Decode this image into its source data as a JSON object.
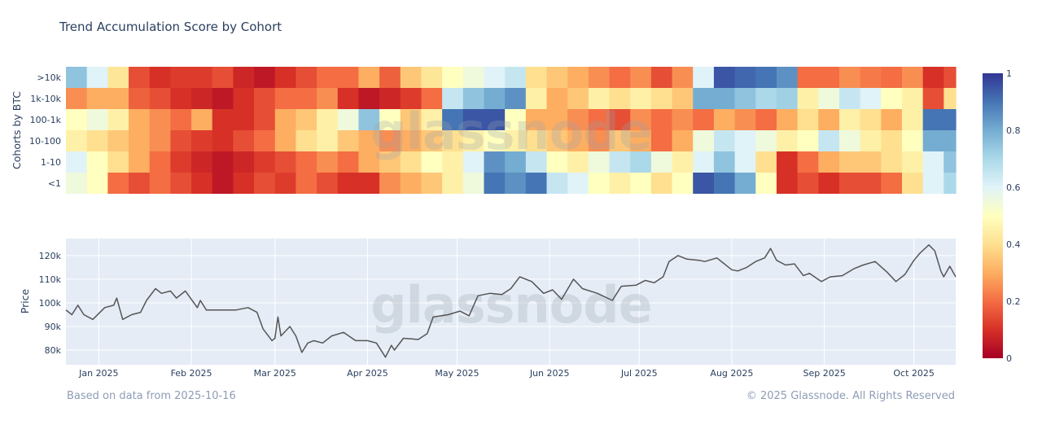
{
  "title": "Trend Accumulation Score by Cohort",
  "footer_left": "Based on data from 2025-10-16",
  "footer_right": "© 2025 Glassnode. All Rights Reserved",
  "watermark": "glassnode",
  "chart_data": [
    {
      "type": "heatmap",
      "ylabel": "Cohorts by BTC",
      "x_start": "2024-12-21",
      "x_end": "2025-10-15",
      "bucket_days": 7,
      "cohorts": [
        ">10k",
        "1k-10k",
        "100-1k",
        "10-100",
        "1-10",
        "<1"
      ],
      "values": [
        [
          0.75,
          0.6,
          0.42,
          0.15,
          0.1,
          0.12,
          0.12,
          0.15,
          0.08,
          0.05,
          0.1,
          0.15,
          0.2,
          0.2,
          0.3,
          0.18,
          0.35,
          0.42,
          0.5,
          0.55,
          0.6,
          0.65,
          0.4,
          0.35,
          0.3,
          0.25,
          0.2,
          0.25,
          0.15,
          0.25,
          0.6,
          0.95,
          0.92,
          0.9,
          0.85,
          0.2,
          0.2,
          0.25,
          0.22,
          0.2,
          0.25,
          0.1,
          0.15
        ],
        [
          0.25,
          0.3,
          0.3,
          0.18,
          0.15,
          0.1,
          0.08,
          0.05,
          0.1,
          0.15,
          0.2,
          0.2,
          0.25,
          0.1,
          0.05,
          0.08,
          0.12,
          0.2,
          0.65,
          0.75,
          0.8,
          0.85,
          0.45,
          0.3,
          0.35,
          0.45,
          0.4,
          0.45,
          0.4,
          0.35,
          0.8,
          0.8,
          0.75,
          0.7,
          0.72,
          0.45,
          0.55,
          0.65,
          0.6,
          0.5,
          0.45,
          0.15,
          0.4
        ],
        [
          0.5,
          0.55,
          0.45,
          0.3,
          0.25,
          0.2,
          0.3,
          0.1,
          0.1,
          0.15,
          0.3,
          0.35,
          0.45,
          0.55,
          0.75,
          0.5,
          0.35,
          0.45,
          0.9,
          0.95,
          0.95,
          0.5,
          0.3,
          0.3,
          0.25,
          0.2,
          0.15,
          0.25,
          0.2,
          0.25,
          0.2,
          0.3,
          0.25,
          0.2,
          0.3,
          0.4,
          0.3,
          0.45,
          0.4,
          0.3,
          0.45,
          0.9,
          0.9
        ],
        [
          0.45,
          0.4,
          0.35,
          0.3,
          0.25,
          0.15,
          0.12,
          0.1,
          0.15,
          0.2,
          0.3,
          0.4,
          0.45,
          0.35,
          0.3,
          0.25,
          0.3,
          0.35,
          0.4,
          0.45,
          0.5,
          0.45,
          0.4,
          0.35,
          0.3,
          0.25,
          0.35,
          0.3,
          0.2,
          0.3,
          0.55,
          0.65,
          0.6,
          0.55,
          0.45,
          0.5,
          0.65,
          0.55,
          0.45,
          0.4,
          0.5,
          0.8,
          0.8
        ],
        [
          0.6,
          0.5,
          0.4,
          0.3,
          0.2,
          0.12,
          0.08,
          0.05,
          0.08,
          0.12,
          0.15,
          0.2,
          0.25,
          0.2,
          0.3,
          0.35,
          0.4,
          0.5,
          0.45,
          0.6,
          0.85,
          0.8,
          0.65,
          0.5,
          0.45,
          0.55,
          0.65,
          0.7,
          0.55,
          0.45,
          0.6,
          0.75,
          0.6,
          0.4,
          0.1,
          0.2,
          0.3,
          0.35,
          0.35,
          0.4,
          0.45,
          0.6,
          0.75
        ],
        [
          0.55,
          0.5,
          0.2,
          0.15,
          0.2,
          0.15,
          0.1,
          0.05,
          0.1,
          0.15,
          0.12,
          0.2,
          0.15,
          0.1,
          0.1,
          0.25,
          0.3,
          0.35,
          0.45,
          0.55,
          0.9,
          0.85,
          0.9,
          0.65,
          0.6,
          0.5,
          0.45,
          0.5,
          0.4,
          0.5,
          0.95,
          0.9,
          0.8,
          0.5,
          0.1,
          0.15,
          0.1,
          0.15,
          0.15,
          0.2,
          0.4,
          0.6,
          0.7
        ]
      ],
      "colorscale": "RdYlBu",
      "colorbar": {
        "range": [
          0,
          1
        ],
        "ticks": [
          "0",
          "0.2",
          "0.4",
          "0.6",
          "0.8",
          "1"
        ]
      }
    },
    {
      "type": "line",
      "ylabel": "Price",
      "xlim": [
        "2024-12-21",
        "2025-10-15"
      ],
      "ylim": [
        73800,
        127200
      ],
      "grid": true,
      "color": "#555555",
      "x_ticks": [
        "Jan 2025",
        "Feb 2025",
        "Mar 2025",
        "Apr 2025",
        "May 2025",
        "Jun 2025",
        "Jul 2025",
        "Aug 2025",
        "Sep 2025",
        "Oct 2025"
      ],
      "y_ticks": [
        "80k",
        "90k",
        "100k",
        "110k",
        "120k"
      ],
      "points": [
        [
          "2024-12-21",
          97000
        ],
        [
          "2024-12-23",
          95000
        ],
        [
          "2024-12-25",
          99000
        ],
        [
          "2024-12-27",
          95000
        ],
        [
          "2024-12-30",
          93000
        ],
        [
          "2025-01-03",
          98000
        ],
        [
          "2025-01-06",
          99000
        ],
        [
          "2025-01-07",
          102000
        ],
        [
          "2025-01-09",
          93000
        ],
        [
          "2025-01-12",
          95000
        ],
        [
          "2025-01-15",
          96000
        ],
        [
          "2025-01-17",
          101000
        ],
        [
          "2025-01-20",
          106000
        ],
        [
          "2025-01-22",
          104000
        ],
        [
          "2025-01-25",
          105000
        ],
        [
          "2025-01-27",
          102000
        ],
        [
          "2025-01-30",
          105000
        ],
        [
          "2025-02-03",
          98000
        ],
        [
          "2025-02-04",
          101000
        ],
        [
          "2025-02-06",
          97000
        ],
        [
          "2025-02-12",
          97000
        ],
        [
          "2025-02-16",
          97000
        ],
        [
          "2025-02-20",
          98000
        ],
        [
          "2025-02-23",
          96000
        ],
        [
          "2025-02-25",
          89000
        ],
        [
          "2025-02-28",
          84000
        ],
        [
          "2025-03-01",
          85000
        ],
        [
          "2025-03-02",
          94000
        ],
        [
          "2025-03-03",
          86000
        ],
        [
          "2025-03-06",
          90000
        ],
        [
          "2025-03-08",
          86000
        ],
        [
          "2025-03-10",
          79000
        ],
        [
          "2025-03-12",
          83000
        ],
        [
          "2025-03-14",
          84000
        ],
        [
          "2025-03-17",
          83000
        ],
        [
          "2025-03-20",
          86000
        ],
        [
          "2025-03-24",
          87500
        ],
        [
          "2025-03-28",
          84000
        ],
        [
          "2025-04-01",
          84000
        ],
        [
          "2025-04-04",
          83000
        ],
        [
          "2025-04-07",
          77000
        ],
        [
          "2025-04-09",
          82000
        ],
        [
          "2025-04-10",
          80000
        ],
        [
          "2025-04-13",
          85000
        ],
        [
          "2025-04-18",
          84500
        ],
        [
          "2025-04-21",
          87000
        ],
        [
          "2025-04-23",
          94000
        ],
        [
          "2025-04-28",
          95000
        ],
        [
          "2025-05-02",
          96500
        ],
        [
          "2025-05-05",
          94500
        ],
        [
          "2025-05-08",
          103000
        ],
        [
          "2025-05-12",
          104000
        ],
        [
          "2025-05-16",
          103500
        ],
        [
          "2025-05-19",
          106000
        ],
        [
          "2025-05-22",
          111000
        ],
        [
          "2025-05-26",
          109000
        ],
        [
          "2025-05-30",
          104000
        ],
        [
          "2025-06-02",
          105500
        ],
        [
          "2025-06-05",
          101500
        ],
        [
          "2025-06-09",
          110000
        ],
        [
          "2025-06-12",
          106000
        ],
        [
          "2025-06-17",
          104000
        ],
        [
          "2025-06-22",
          101000
        ],
        [
          "2025-06-25",
          107000
        ],
        [
          "2025-06-30",
          107500
        ],
        [
          "2025-07-03",
          109500
        ],
        [
          "2025-07-06",
          108500
        ],
        [
          "2025-07-09",
          111000
        ],
        [
          "2025-07-11",
          117500
        ],
        [
          "2025-07-14",
          120000
        ],
        [
          "2025-07-17",
          118500
        ],
        [
          "2025-07-21",
          118000
        ],
        [
          "2025-07-23",
          117500
        ],
        [
          "2025-07-27",
          119000
        ],
        [
          "2025-08-01",
          114000
        ],
        [
          "2025-08-03",
          113500
        ],
        [
          "2025-08-06",
          115000
        ],
        [
          "2025-08-09",
          117500
        ],
        [
          "2025-08-12",
          119000
        ],
        [
          "2025-08-14",
          123000
        ],
        [
          "2025-08-16",
          118000
        ],
        [
          "2025-08-19",
          116000
        ],
        [
          "2025-08-22",
          116500
        ],
        [
          "2025-08-25",
          111500
        ],
        [
          "2025-08-27",
          112500
        ],
        [
          "2025-08-31",
          109000
        ],
        [
          "2025-09-03",
          111000
        ],
        [
          "2025-09-07",
          111500
        ],
        [
          "2025-09-11",
          114500
        ],
        [
          "2025-09-14",
          116000
        ],
        [
          "2025-09-18",
          117500
        ],
        [
          "2025-09-22",
          113000
        ],
        [
          "2025-09-25",
          109000
        ],
        [
          "2025-09-28",
          112000
        ],
        [
          "2025-10-01",
          118000
        ],
        [
          "2025-10-03",
          121000
        ],
        [
          "2025-10-06",
          124500
        ],
        [
          "2025-10-08",
          122000
        ],
        [
          "2025-10-10",
          113500
        ],
        [
          "2025-10-11",
          111000
        ],
        [
          "2025-10-13",
          115500
        ],
        [
          "2025-10-15",
          111000
        ]
      ]
    }
  ]
}
